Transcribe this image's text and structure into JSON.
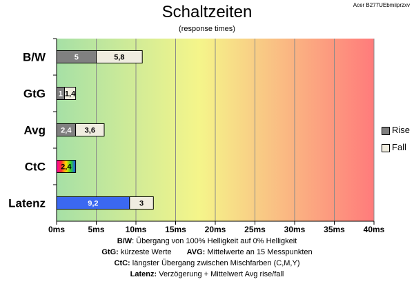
{
  "header": {
    "title": "Schaltzeiten",
    "subtitle": "(response times)",
    "model": "Acer B277UEbmiiprzxv"
  },
  "colors": {
    "rise": "#808080",
    "fall": "#f0ede0",
    "latenz_rise": "#3b68f0",
    "bg_gradient": [
      "#a6e0a6",
      "#f5f58a",
      "#ff7b7b"
    ]
  },
  "chart_data": {
    "type": "bar",
    "orientation": "horizontal",
    "stacked": true,
    "title": "Schaltzeiten",
    "subtitle": "(response times)",
    "categories": [
      "B/W",
      "GtG",
      "Avg",
      "CtC",
      "Latenz"
    ],
    "series": [
      {
        "name": "Rise",
        "values": [
          5,
          1,
          2.4,
          2.4,
          9.2
        ],
        "labels": [
          "5",
          "1",
          "2,4",
          "2,4",
          "9,2"
        ]
      },
      {
        "name": "Fall",
        "values": [
          5.8,
          1.4,
          3.6,
          null,
          3
        ],
        "labels": [
          "5,8",
          "1,4",
          "3,6",
          "",
          "3"
        ]
      }
    ],
    "xlim": [
      0,
      40
    ],
    "xticks": [
      "0ms",
      "5ms",
      "10ms",
      "15ms",
      "20ms",
      "25ms",
      "30ms",
      "35ms",
      "40ms"
    ],
    "xtick_values": [
      0,
      5,
      10,
      15,
      20,
      25,
      30,
      35,
      40
    ],
    "grid": true,
    "legend_position": "right"
  },
  "legend": {
    "rise": "Rise",
    "fall": "Fall"
  },
  "footnotes": {
    "bw_key": "B/W",
    "bw_text": ":  Übergang von 100% Helligkeit auf 0% Helligkeit",
    "gtg_key": "GtG:",
    "gtg_text": " kürzeste  Werte",
    "avg_key": "AVG:",
    "avg_text": " Mittelwerte  an 15 Messpunkten",
    "ctc_key": "CtC:",
    "ctc_text": " längster Übergang  zwischen Mischfarben  (C,M,Y)",
    "latenz_key": "Latenz:",
    "latenz_text": " Verzögerung  + Mittelwert  Avg rise/fall"
  }
}
